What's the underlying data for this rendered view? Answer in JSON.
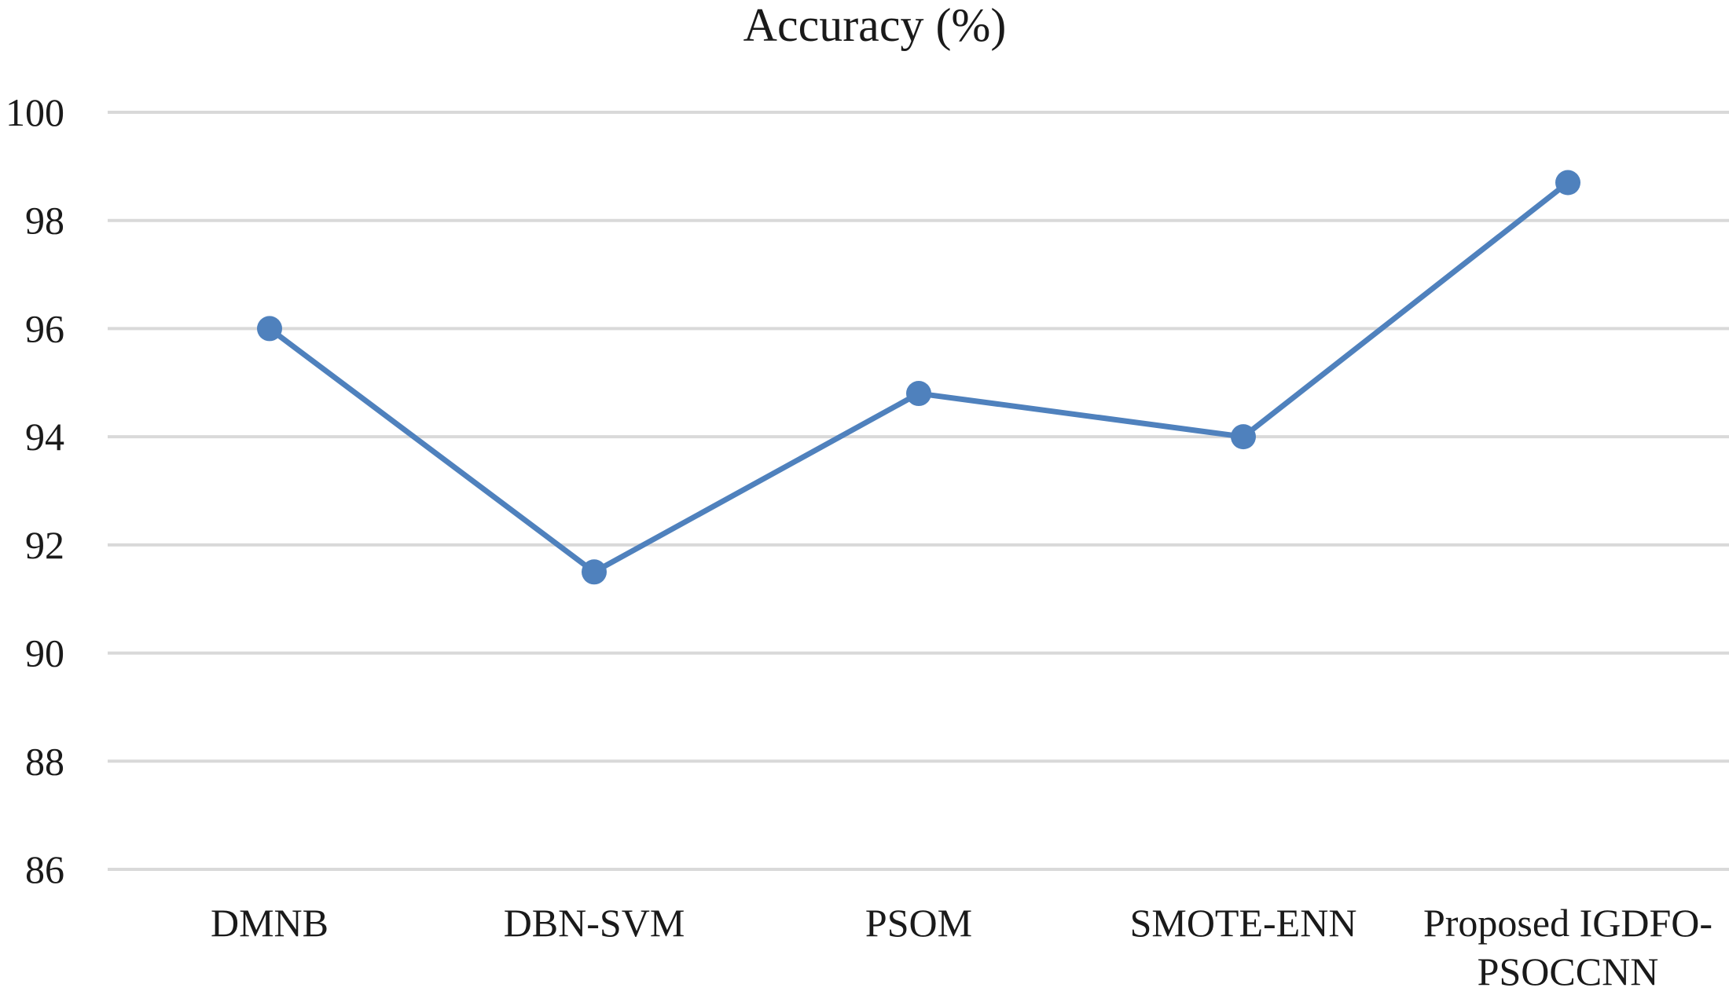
{
  "chart_data": {
    "type": "line",
    "title": "Accuracy (%)",
    "xlabel": "",
    "ylabel": "",
    "categories": [
      "DMNB",
      "DBN-SVM",
      "PSOM",
      "SMOTE-ENN",
      "Proposed IGDFO-PSOCCNN"
    ],
    "category_lines": [
      [
        "DMNB"
      ],
      [
        "DBN-SVM"
      ],
      [
        "PSOM"
      ],
      [
        "SMOTE-ENN"
      ],
      [
        "Proposed IGDFO-",
        "PSOCCNN"
      ]
    ],
    "series": [
      {
        "values": [
          96.0,
          91.5,
          94.8,
          94.0,
          98.7
        ],
        "color": "#4f81bd"
      }
    ],
    "ylim": [
      86,
      100
    ],
    "yticks": [
      86,
      88,
      90,
      92,
      94,
      96,
      98,
      100
    ],
    "grid": true,
    "legend": "none",
    "markers": "circle"
  }
}
